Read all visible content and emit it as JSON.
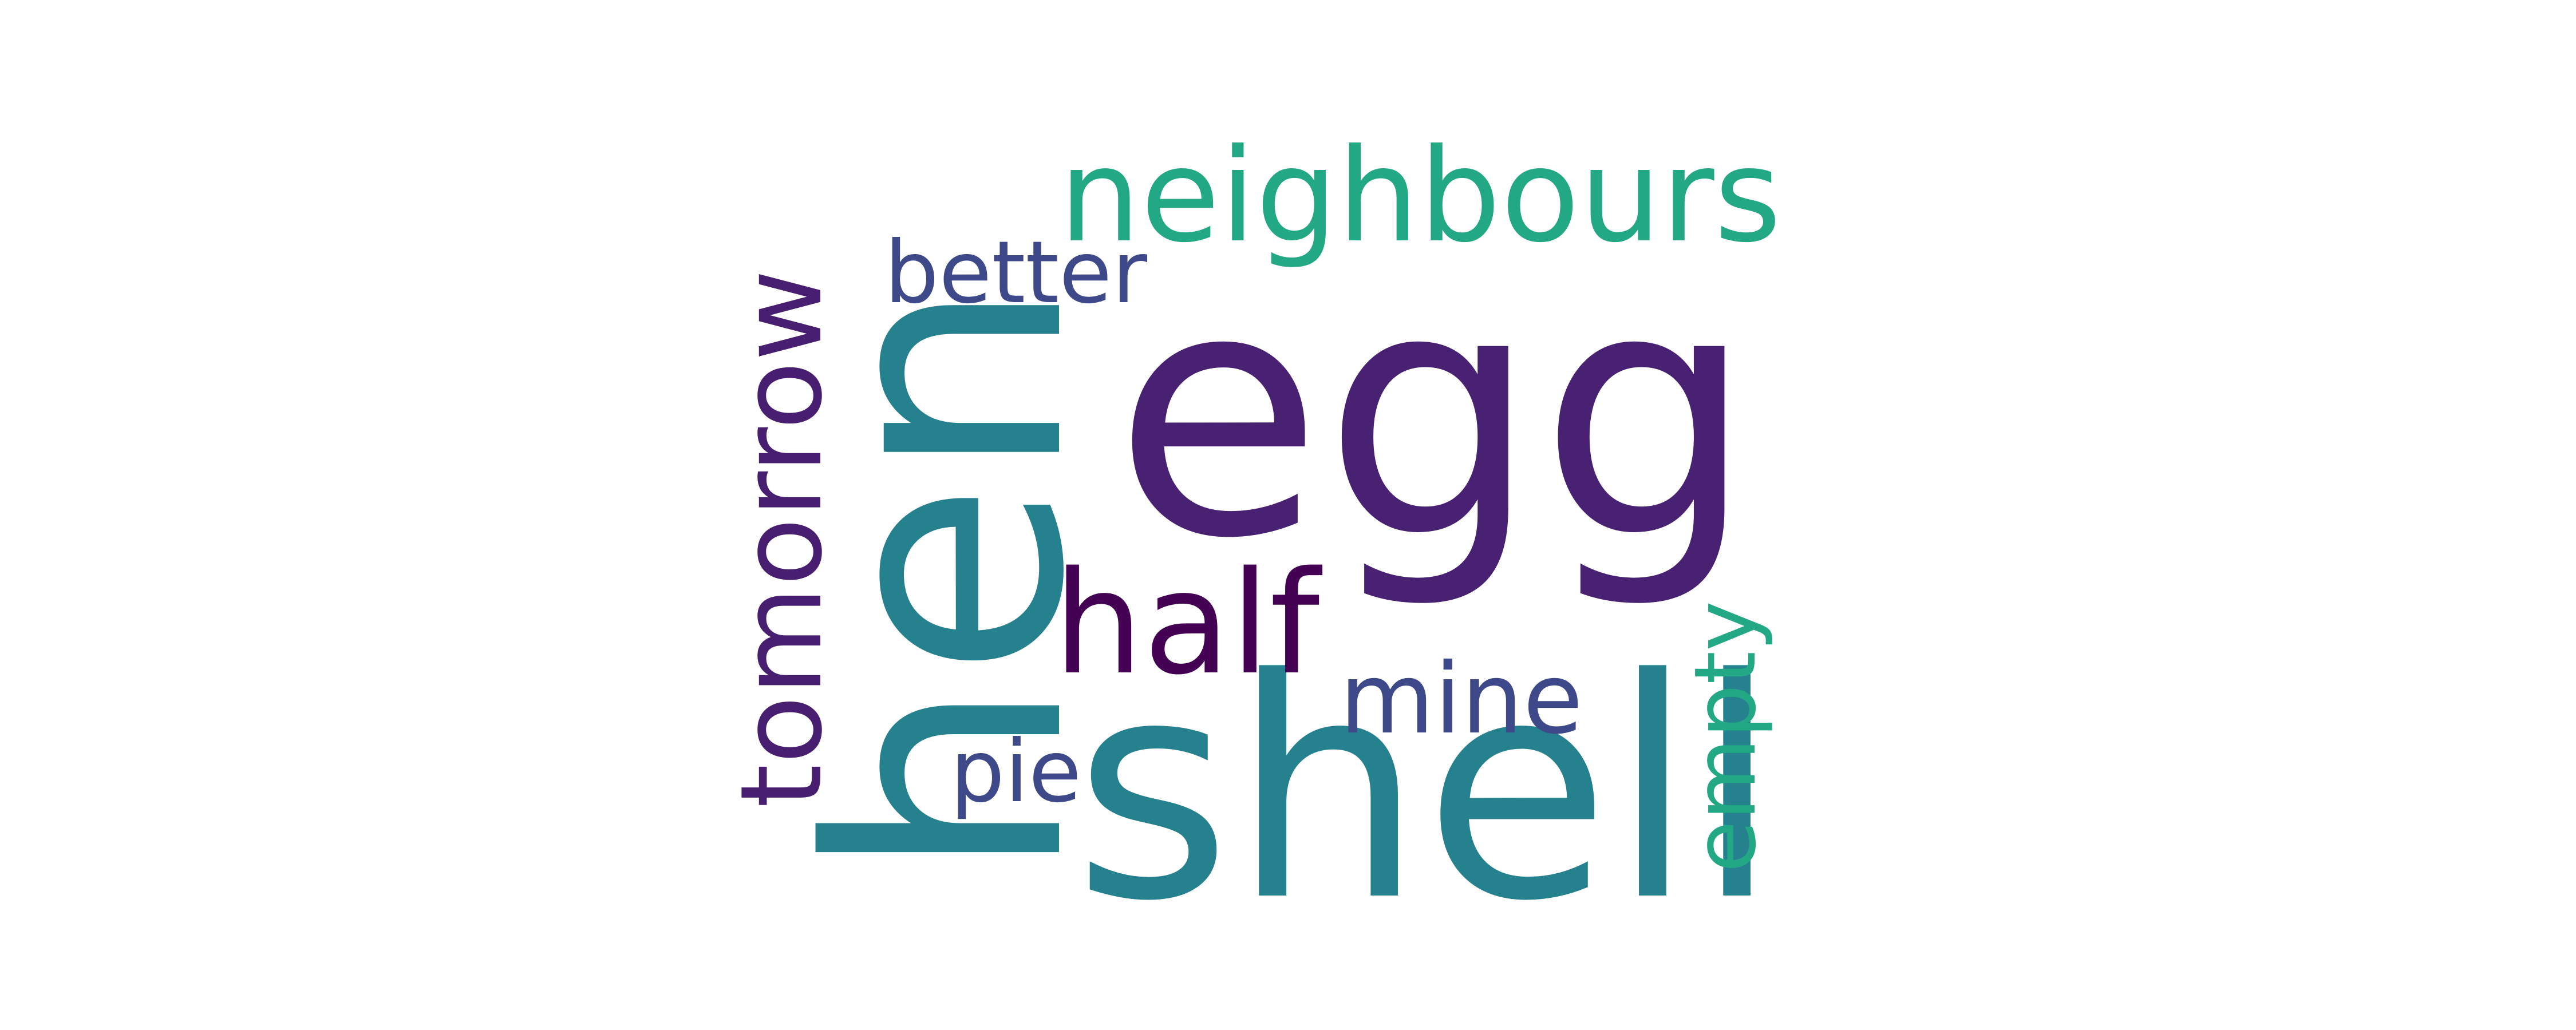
{
  "word_cloud": {
    "words": [
      {
        "text": "egg",
        "color": "#482173"
      },
      {
        "text": "hen",
        "color": "#26818e"
      },
      {
        "text": "shell",
        "color": "#26818e"
      },
      {
        "text": "neighbours",
        "color": "#22a884"
      },
      {
        "text": "tomorrow",
        "color": "#481f70"
      },
      {
        "text": "half",
        "color": "#440154"
      },
      {
        "text": "mine",
        "color": "#3e4989"
      },
      {
        "text": "better",
        "color": "#3e4989"
      },
      {
        "text": "pie",
        "color": "#3e4989"
      },
      {
        "text": "empty",
        "color": "#22a884"
      }
    ]
  }
}
